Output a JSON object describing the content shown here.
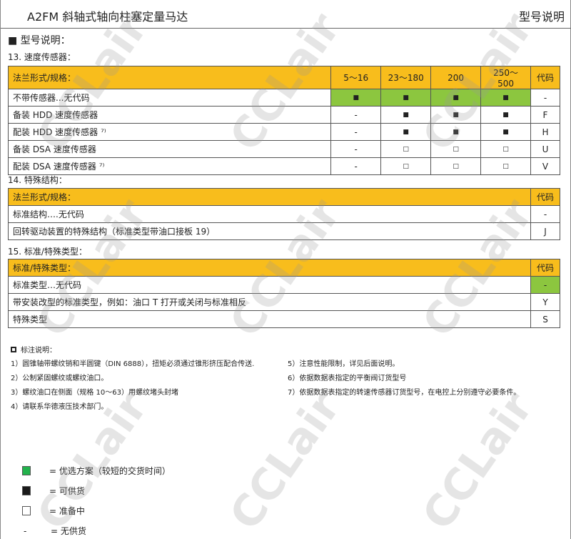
{
  "header": {
    "title": "A2FM 斜轴式轴向柱塞定量马达",
    "section": "型号说明"
  },
  "heading": "■  型号说明：",
  "s13": {
    "title": "13. 速度传感器：",
    "cols": [
      "法兰形式/规格：",
      "5～16",
      "23～180",
      "200",
      "250～500",
      "代码"
    ],
    "rows": [
      [
        "不带传感器...无代码",
        "■",
        "■",
        "■",
        "■",
        "-"
      ],
      [
        "备装 HDD 速度传感器",
        "-",
        "■",
        "■",
        "■",
        "F"
      ],
      [
        "配装 HDD 速度传感器 ⁷⁾",
        "-",
        "■",
        "■",
        "■",
        "H"
      ],
      [
        "备装 DSA 速度传感器",
        "-",
        "□",
        "□",
        "□",
        "U"
      ],
      [
        "配装 DSA 速度传感器 ⁷⁾",
        "-",
        "□",
        "□",
        "□",
        "V"
      ]
    ]
  },
  "s14": {
    "title": "14. 特殊结构：",
    "cols": [
      "法兰形式/规格：",
      "代码"
    ],
    "rows": [
      [
        "标准结构….无代码",
        "-"
      ],
      [
        "回转驱动装置的特殊结构（标准类型带油口接板 19）",
        "J"
      ]
    ]
  },
  "s15": {
    "title": "15. 标准/特殊类型：",
    "cols": [
      "标准/特殊类型：",
      "代码"
    ],
    "rows": [
      [
        "标准类型…无代码",
        "-"
      ],
      [
        "带安装改型的标准类型，例如：油口 T 打开或关闭与标准相反",
        "Y"
      ],
      [
        "特殊类型",
        "S"
      ]
    ]
  },
  "notes": {
    "title": "标注说明：",
    "left": [
      "1）圆锥轴带螺纹销和半圆键（DIN 6888），扭矩必须通过锥形挤压配合传送.",
      "2）公制紧固螺纹或螺纹油口。",
      "3）螺纹油口在侧面（规格 10～63）用螺纹堵头封堵",
      "4）请联系华德液压技术部门。"
    ],
    "right": [
      "5）注意性能限制，详见后面说明。",
      "6）依据数据表指定的平衡阀订货型号",
      "7）依据数据表指定的转速传感器订货型号，在电控上分别遵守必要条件。"
    ]
  },
  "legend": [
    {
      "sym": "green-square",
      "text": "=  优选方案（较短的交货时间）"
    },
    {
      "sym": "black-square",
      "text": "=  可供货"
    },
    {
      "sym": "white-square",
      "text": "=  准备中"
    },
    {
      "sym": "-",
      "text": "=  无供货"
    }
  ],
  "watermark": "CCLair",
  "colors": {
    "header_row": "#f8bd1c",
    "preferred": "#8cc63f"
  }
}
